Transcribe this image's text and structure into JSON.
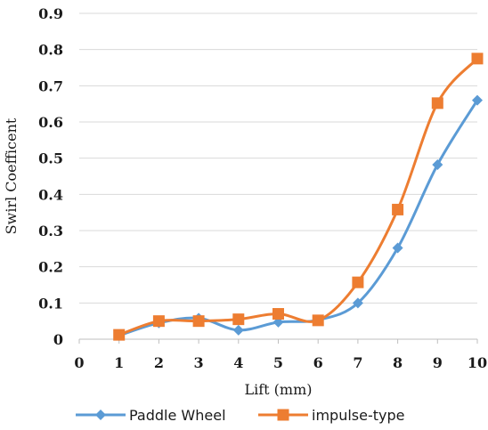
{
  "chart_data": {
    "type": "line",
    "xlabel": "Lift (mm)",
    "ylabel": "Swirl Coefficent",
    "xlim": [
      0,
      10
    ],
    "ylim": [
      0,
      0.9
    ],
    "x_ticks": [
      "0",
      "1",
      "2",
      "3",
      "4",
      "5",
      "6",
      "7",
      "8",
      "9",
      "10"
    ],
    "y_ticks": [
      "0",
      "0.1",
      "0.2",
      "0.3",
      "0.4",
      "0.5",
      "0.6",
      "0.7",
      "0.8",
      "0.9"
    ],
    "grid": "horizontal",
    "legend_position": "bottom",
    "x": [
      1,
      2,
      3,
      4,
      5,
      6,
      7,
      8,
      9,
      10
    ],
    "series": [
      {
        "name": "Paddle Wheel",
        "color": "#5b9bd5",
        "marker": "diamond",
        "values": [
          0.01,
          0.045,
          0.058,
          0.025,
          0.047,
          0.053,
          0.1,
          0.252,
          0.482,
          0.66
        ]
      },
      {
        "name": "impulse-type",
        "color": "#ed7d31",
        "marker": "square",
        "values": [
          0.012,
          0.05,
          0.05,
          0.055,
          0.07,
          0.052,
          0.157,
          0.358,
          0.652,
          0.775
        ]
      }
    ]
  }
}
